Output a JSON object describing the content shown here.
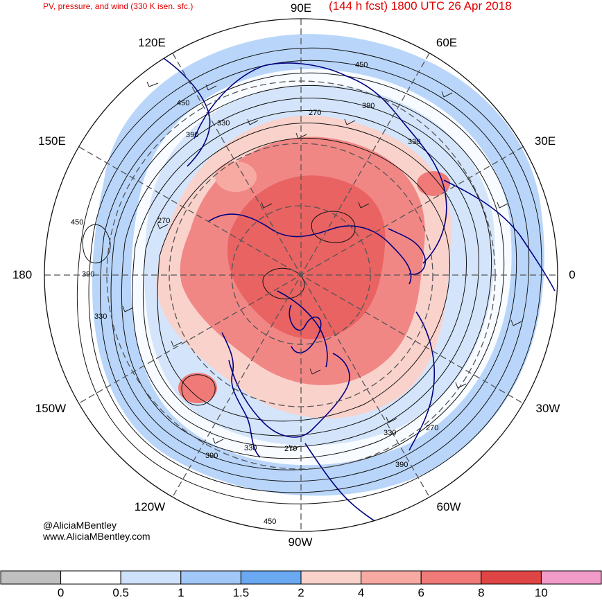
{
  "title": {
    "left": "PV, pressure, and wind (330 K isen. sfc.)",
    "right": "(144 h fcst) 1800 UTC 26 Apr 2018"
  },
  "longitude_labels": {
    "e90": "90E",
    "e60": "60E",
    "e120": "120E",
    "e150": "150E",
    "e30": "30E",
    "w180": "180",
    "zero": "0",
    "w150": "150W",
    "w30": "30W",
    "w120": "120W",
    "w60": "60W",
    "w90": "90W"
  },
  "contour_labels": [
    "450",
    "390",
    "330",
    "270",
    "450",
    "390",
    "330",
    "270",
    "450",
    "390",
    "330",
    "270",
    "330",
    "390",
    "450",
    "390",
    "330",
    "270"
  ],
  "credits": {
    "handle": "@AliciaMBentley",
    "website": "www.AliciaMBentley.com"
  },
  "colorbar": {
    "colors": [
      "#c0c0c0",
      "#ffffff",
      "#cfe2fb",
      "#a2c8f8",
      "#6aa8f2",
      "#f9d2cc",
      "#f7aaa2",
      "#f07a78",
      "#e04545",
      "#f29bc8"
    ],
    "labels": [
      "0",
      "0.5",
      "1",
      "1.5",
      "2",
      "4",
      "6",
      "8",
      "10"
    ]
  }
}
